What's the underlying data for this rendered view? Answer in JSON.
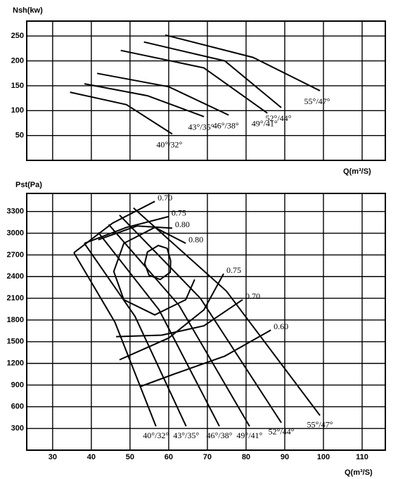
{
  "chart_data": [
    {
      "type": "line",
      "y_label": "Nsh(kw)",
      "x_label": "Q(m³/S)",
      "xlim": [
        23.3,
        116
      ],
      "ylim": [
        0,
        280
      ],
      "yticks": [
        50,
        100,
        150,
        200,
        250
      ],
      "grid": true,
      "series": [
        {
          "name": "40°/32°",
          "color": "#000000",
          "x": [
            34.5,
            49.1,
            60.9
          ],
          "values": [
            137,
            112,
            53
          ]
        },
        {
          "name": "43°/35°",
          "color": "#000000",
          "x": [
            38.2,
            54.5,
            69.1
          ],
          "values": [
            154,
            130,
            88
          ]
        },
        {
          "name": "46°/38°",
          "color": "#000000",
          "x": [
            41.5,
            60,
            75.5
          ],
          "values": [
            175,
            148,
            91
          ]
        },
        {
          "name": "49°/41°",
          "color": "#000000",
          "x": [
            47.6,
            69.1,
            85.5
          ],
          "values": [
            221,
            186,
            95
          ]
        },
        {
          "name": "52°/44°",
          "color": "#000000",
          "x": [
            53.6,
            74.5,
            89.1
          ],
          "values": [
            238,
            200,
            106
          ]
        },
        {
          "name": "55°/47°",
          "color": "#000000",
          "x": [
            59.1,
            81.8,
            99.1
          ],
          "values": [
            252,
            207,
            140
          ]
        }
      ]
    },
    {
      "type": "line",
      "y_label": "Pst(Pa)",
      "x_label": "Q(m³/S)",
      "xlim": [
        23.3,
        116
      ],
      "ylim": [
        0,
        3550
      ],
      "xticks": [
        30,
        40,
        50,
        60,
        70,
        80,
        90,
        100,
        110
      ],
      "yticks": [
        300,
        600,
        900,
        1200,
        1500,
        1800,
        2100,
        2400,
        2700,
        3000,
        3300
      ],
      "grid": true,
      "series": [
        {
          "name": "40°/32°",
          "color": "#000000",
          "x": [
            35.5,
            46.1,
            56.7
          ],
          "values": [
            2730,
            1770,
            330
          ]
        },
        {
          "name": "43°/35°",
          "color": "#000000",
          "x": [
            38.2,
            51.3,
            64.5
          ],
          "values": [
            2860,
            1850,
            330
          ]
        },
        {
          "name": "46°/38°",
          "color": "#000000",
          "x": [
            41.8,
            57.5,
            73.1
          ],
          "values": [
            3010,
            1940,
            330
          ]
        },
        {
          "name": "49°/41°",
          "color": "#000000",
          "x": [
            44.5,
            62.7,
            80.9
          ],
          "values": [
            3120,
            2000,
            330
          ]
        },
        {
          "name": "52°/44°",
          "color": "#000000",
          "x": [
            47.3,
            68.2,
            89.1
          ],
          "values": [
            3250,
            2100,
            380
          ]
        },
        {
          "name": "55°/47°",
          "color": "#000000",
          "x": [
            50.9,
            74.9,
            99.1
          ],
          "values": [
            3350,
            2200,
            480
          ]
        },
        {
          "name": "0.70",
          "color": "#000000",
          "x": [
            35.5,
            45.5,
            56.4
          ],
          "values": [
            2730,
            3140,
            3440
          ]
        },
        {
          "name": "0.75",
          "color": "#000000",
          "x": [
            38.2,
            49.1,
            60
          ],
          "values": [
            2860,
            3080,
            3230
          ]
        },
        {
          "name": "0.80",
          "color": "#000000",
          "x": [
            41.8,
            51.8,
            60.9
          ],
          "values": [
            2910,
            3100,
            3070
          ]
        },
        {
          "name": "0.80",
          "color": "#000000",
          "x": [
            66.7,
            64.4,
            56.4,
            48.4,
            45.8,
            48.4,
            56.4,
            64.4
          ],
          "values": [
            2360,
            2080,
            1870,
            2080,
            2470,
            2860,
            3080,
            2860
          ]
        },
        {
          "color": "#000000",
          "x": [
            60.5,
            59.6,
            57.3,
            54.5,
            53.8,
            54.9,
            57.8,
            60.4,
            60.5
          ],
          "values": [
            2620,
            2790,
            2830,
            2740,
            2580,
            2420,
            2360,
            2460,
            2620
          ]
        },
        {
          "name": "0.75",
          "color": "#000000",
          "x": [
            47.3,
            60,
            69.1,
            74.2
          ],
          "values": [
            1250,
            1550,
            1940,
            2440
          ]
        },
        {
          "name": "0.70",
          "color": "#000000",
          "x": [
            46.4,
            58.2,
            69.1,
            79.1
          ],
          "values": [
            1570,
            1590,
            1720,
            2080
          ]
        },
        {
          "name": "0.60",
          "color": "#000000",
          "x": [
            52.7,
            61.8,
            74.5,
            86.4
          ],
          "values": [
            880,
            1060,
            1300,
            1660
          ]
        }
      ]
    }
  ]
}
